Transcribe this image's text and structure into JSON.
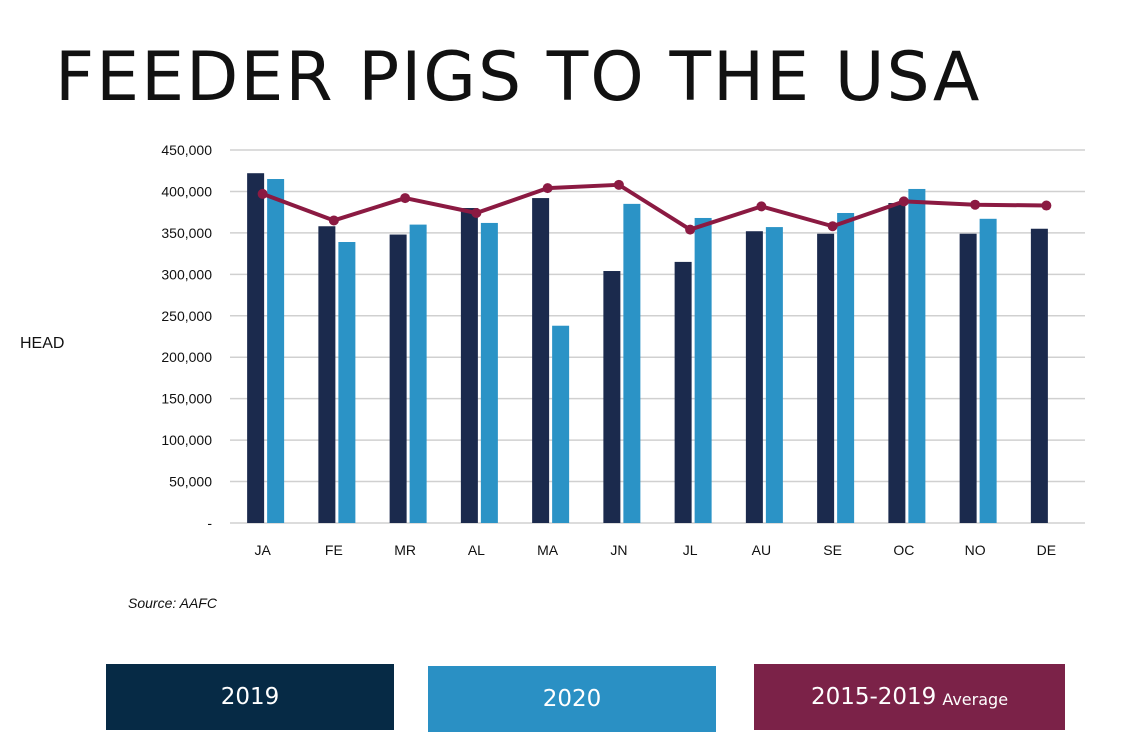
{
  "title": "FEEDER PIGS TO THE USA",
  "source": "Source: AAFC",
  "legend": {
    "y2019": "2019",
    "y2020": "2020",
    "avg_main": "2015-2019",
    "avg_small": "Average"
  },
  "colors": {
    "y2019": "#1b2a4d",
    "y2020": "#2b93c6",
    "avg": "#8b1a42",
    "legend_2019": "#062a45",
    "legend_2020": "#2a90c4",
    "legend_avg": "#7b2248",
    "grid": "#d0d0d0"
  },
  "chart_data": {
    "type": "bar",
    "ylabel": "HEAD",
    "ylim": [
      0,
      450000
    ],
    "yticks": [
      "-",
      "50,000",
      "100,000",
      "150,000",
      "200,000",
      "250,000",
      "300,000",
      "350,000",
      "400,000",
      "450,000"
    ],
    "categories": [
      "JA",
      "FE",
      "MR",
      "AL",
      "MA",
      "JN",
      "JL",
      "AU",
      "SE",
      "OC",
      "NO",
      "DE"
    ],
    "grid": true,
    "series": [
      {
        "name": "2019",
        "type": "bar",
        "values": [
          422000,
          358000,
          348000,
          380000,
          392000,
          304000,
          315000,
          352000,
          349000,
          386000,
          349000,
          355000
        ]
      },
      {
        "name": "2020",
        "type": "bar",
        "values": [
          415000,
          339000,
          360000,
          362000,
          238000,
          385000,
          368000,
          357000,
          374000,
          403000,
          367000,
          null
        ]
      },
      {
        "name": "2015-2019 Average",
        "type": "line",
        "values": [
          397000,
          365000,
          392000,
          374000,
          404000,
          408000,
          354000,
          382000,
          358000,
          388000,
          384000,
          383000
        ]
      }
    ]
  }
}
